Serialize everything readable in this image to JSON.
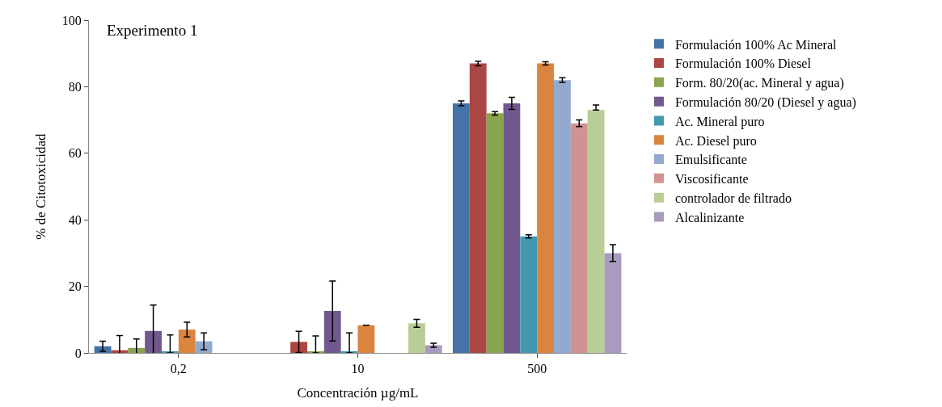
{
  "chart_data": {
    "type": "bar",
    "title": "Experimento 1",
    "xlabel": "Concentración µg/mL",
    "ylabel": "% de Citotoxicidad",
    "categories": [
      "0,2",
      "10",
      "500"
    ],
    "ylim": [
      0,
      100
    ],
    "yticks": [
      0,
      20,
      40,
      60,
      80,
      100
    ],
    "grid": false,
    "legend": "right",
    "series": [
      {
        "name": "Formulación 100% Ac Mineral",
        "color": "#4572a7",
        "values": [
          2,
          null,
          75
        ],
        "errors": [
          1.5,
          null,
          0.7
        ]
      },
      {
        "name": "Formulación 100% Diesel",
        "color": "#aa4643",
        "values": [
          0.8,
          3.3,
          87
        ],
        "errors": [
          4.4,
          3.2,
          0.7
        ]
      },
      {
        "name": "Form. 80/20(ac. Mineral y agua)",
        "color": "#89a54e",
        "values": [
          1.5,
          0.3,
          72
        ],
        "errors": [
          2.7,
          [
            0,
            5.1
          ],
          0.5
        ]
      },
      {
        "name": "Formulación 80/20 (Diesel y agua)",
        "color": "#71588f",
        "values": [
          6.6,
          12.6,
          75
        ],
        "errors": [
          7.8,
          9,
          1.8
        ]
      },
      {
        "name": "Ac. Mineral puro",
        "color": "#4198af",
        "values": [
          0.3,
          0.3,
          35
        ],
        "errors": [
          [
            0,
            5.4
          ],
          [
            0,
            6
          ],
          0.5
        ]
      },
      {
        "name": "Ac. Diesel puro",
        "color": "#db843d",
        "values": [
          7,
          8.3,
          87
        ],
        "errors": [
          2.2,
          null,
          0.5
        ]
      },
      {
        "name": "Emulsificante",
        "color": "#93a9cf",
        "values": [
          3.5,
          null,
          82
        ],
        "errors": [
          2.5,
          null,
          0.7
        ]
      },
      {
        "name": "Viscosificante",
        "color": "#d19392",
        "values": [
          null,
          null,
          69
        ],
        "errors": [
          null,
          null,
          1
        ]
      },
      {
        "name": "controlador de filtrado",
        "color": "#b9cd96",
        "values": [
          null,
          8.9,
          73
        ],
        "errors": [
          null,
          1.2,
          [
            73,
            74.5
          ]
        ]
      },
      {
        "name": "Alcalinizante",
        "color": "#a99bbd",
        "values": [
          null,
          2.3,
          30
        ],
        "errors": [
          null,
          0.6,
          2.5
        ]
      }
    ]
  }
}
